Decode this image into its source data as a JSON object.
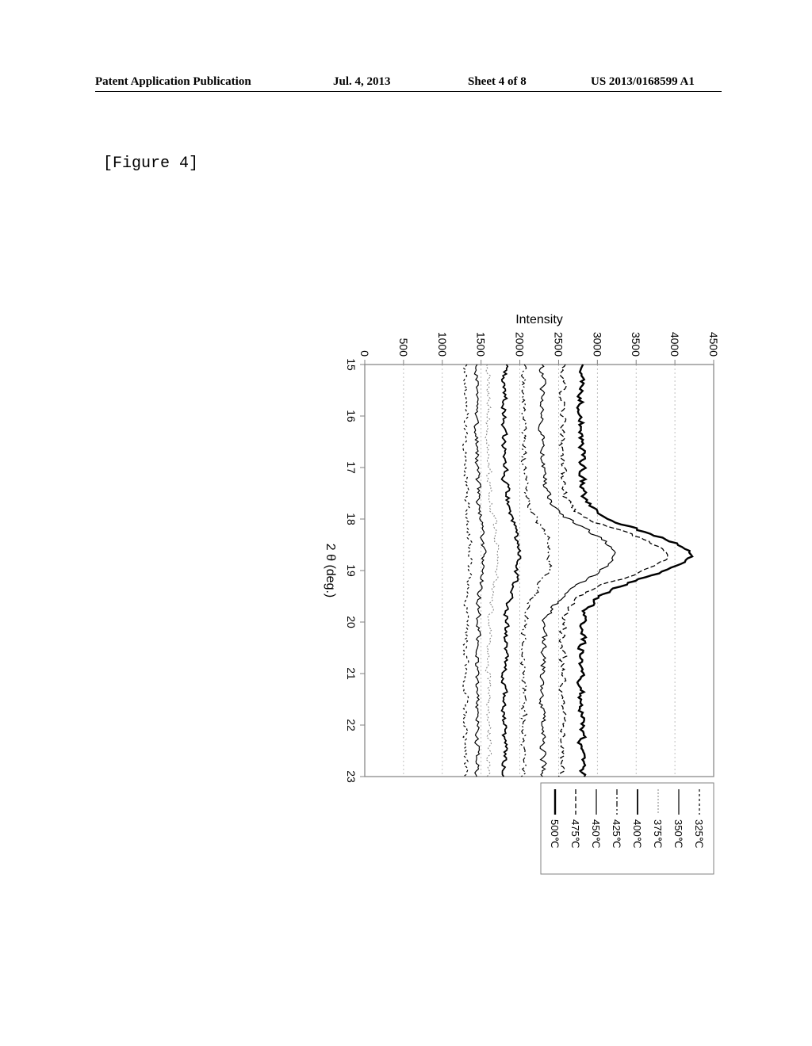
{
  "header": {
    "left": "Patent Application Publication",
    "date": "Jul. 4, 2013",
    "sheet": "Sheet 4 of 8",
    "pubno": "US 2013/0168599 A1"
  },
  "figure_label": "[Figure 4]",
  "chart": {
    "type": "line-xrd",
    "xlabel": "2 θ (deg.)",
    "ylabel": "Intensity",
    "xlim": [
      15,
      23
    ],
    "ylim": [
      0,
      4500
    ],
    "xticks": [
      15,
      16,
      17,
      18,
      19,
      20,
      21,
      22,
      23
    ],
    "yticks": [
      0,
      500,
      1000,
      1500,
      2000,
      2500,
      3000,
      3500,
      4000,
      4500
    ],
    "background_color": "#ffffff",
    "axis_color": "#808080",
    "grid_color": "#b0b0b0",
    "tick_fontsize": 14,
    "label_fontsize": 16,
    "grid": true,
    "grid_dash": "2,3",
    "legend": {
      "position": "right",
      "fontsize": 13,
      "border_color": "#808080"
    },
    "series": [
      {
        "label": "325℃",
        "color": "#000000",
        "dash": "3,3",
        "width": 1.2,
        "baseline": 1300,
        "noise": 55,
        "peak_at": 18.7,
        "peak_h": 60,
        "peak_w": 0.9
      },
      {
        "label": "350℃",
        "color": "#000000",
        "dash": "",
        "width": 1.2,
        "baseline": 1450,
        "noise": 55,
        "peak_at": 18.7,
        "peak_h": 80,
        "peak_w": 0.9
      },
      {
        "label": "375℃",
        "color": "#808080",
        "dash": "2,2",
        "width": 1.0,
        "baseline": 1600,
        "noise": 55,
        "peak_at": 18.7,
        "peak_h": 110,
        "peak_w": 0.9
      },
      {
        "label": "400℃",
        "color": "#000000",
        "dash": "",
        "width": 1.8,
        "baseline": 1800,
        "noise": 60,
        "peak_at": 18.7,
        "peak_h": 180,
        "peak_w": 0.9
      },
      {
        "label": "425℃",
        "color": "#000000",
        "dash": "7,3,2,3",
        "width": 1.2,
        "baseline": 2050,
        "noise": 60,
        "peak_at": 18.7,
        "peak_h": 350,
        "peak_w": 0.8
      },
      {
        "label": "450℃",
        "color": "#000000",
        "dash": "",
        "width": 1.2,
        "baseline": 2300,
        "noise": 65,
        "peak_at": 18.7,
        "peak_h": 900,
        "peak_w": 0.7
      },
      {
        "label": "475℃",
        "color": "#000000",
        "dash": "6,3",
        "width": 1.3,
        "baseline": 2550,
        "noise": 70,
        "peak_at": 18.7,
        "peak_h": 1350,
        "peak_w": 0.6
      },
      {
        "label": "500℃",
        "color": "#000000",
        "dash": "",
        "width": 2.4,
        "baseline": 2800,
        "noise": 75,
        "peak_at": 18.7,
        "peak_h": 1400,
        "peak_w": 0.6
      }
    ]
  }
}
